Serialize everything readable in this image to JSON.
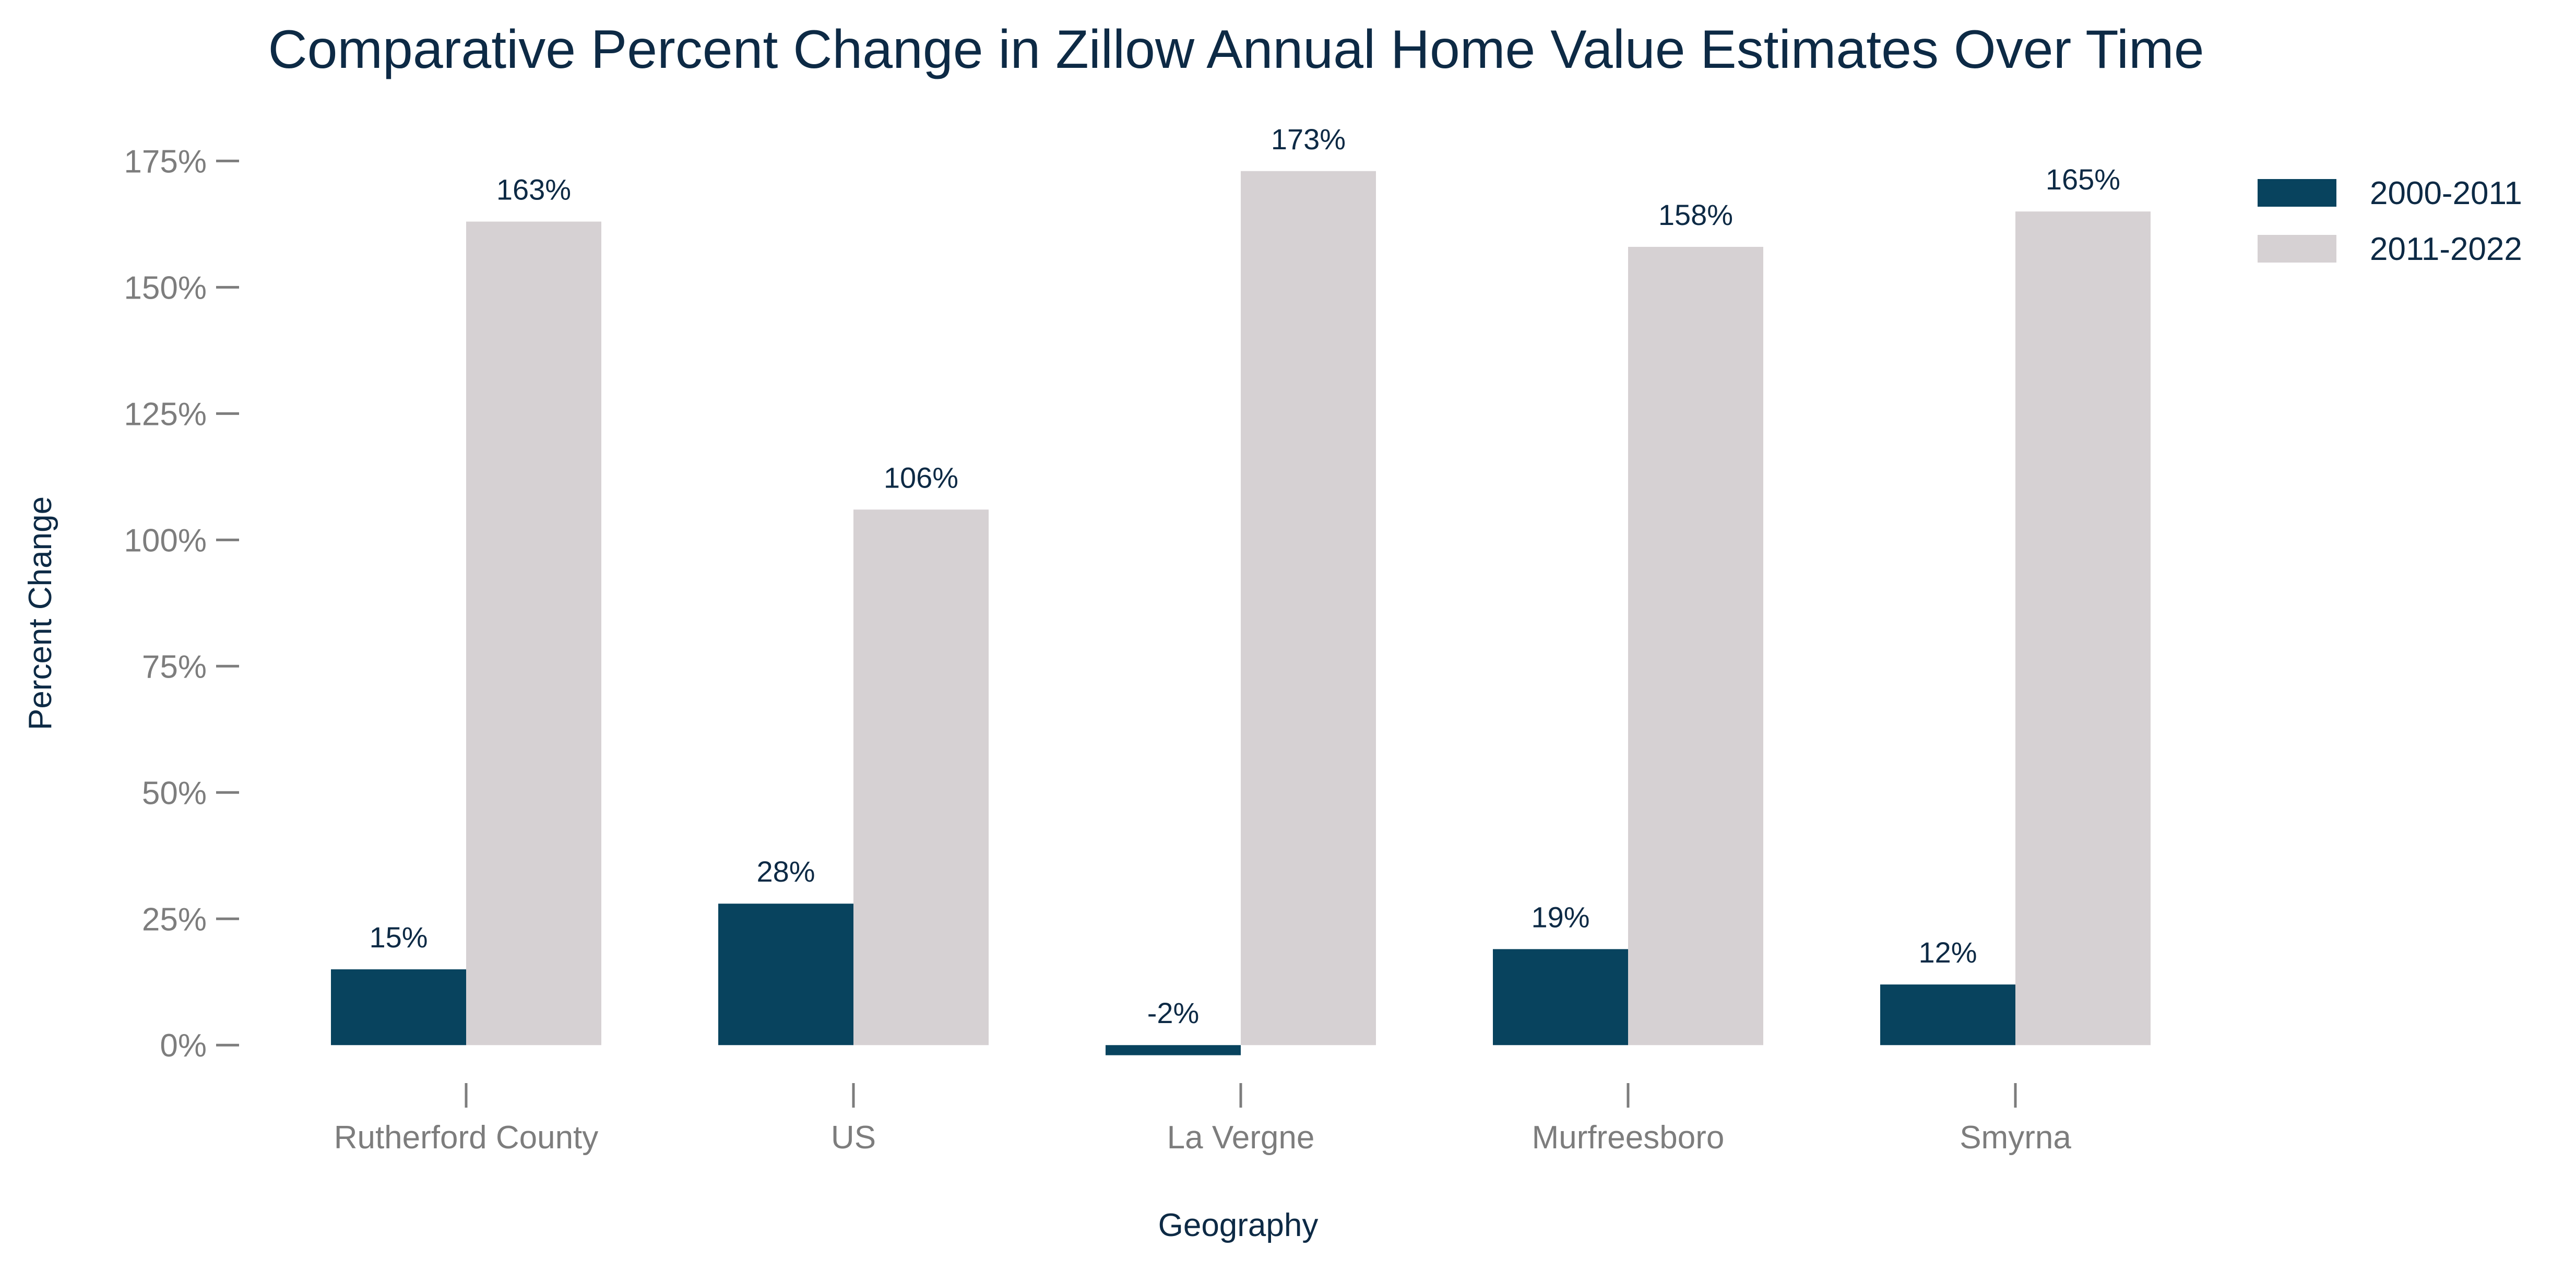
{
  "chart_data": {
    "type": "bar",
    "title": "Comparative Percent Change in Zillow Annual Home Value Estimates Over Time",
    "xlabel": "Geography",
    "ylabel": "Percent Change",
    "categories": [
      "Rutherford County",
      "US",
      "La Vergne",
      "Murfreesboro",
      "Smyrna"
    ],
    "series": [
      {
        "name": "2000-2011",
        "values": [
          15,
          28,
          -2,
          19,
          12
        ],
        "labels": [
          "15%",
          "28%",
          "-2%",
          "19%",
          "12%"
        ],
        "color": "#08435e"
      },
      {
        "name": "2011-2022",
        "values": [
          163,
          106,
          173,
          158,
          165
        ],
        "labels": [
          "163%",
          "106%",
          "173%",
          "158%",
          "165%"
        ],
        "color": "#d6d1d3"
      }
    ],
    "ylim": [
      -7,
      180
    ],
    "yticks": [
      0,
      25,
      50,
      75,
      100,
      125,
      150,
      175
    ],
    "ytick_labels": [
      "0%",
      "25%",
      "50%",
      "75%",
      "100%",
      "125%",
      "150%",
      "175%"
    ],
    "grid": false,
    "legend_position": "top-right"
  }
}
